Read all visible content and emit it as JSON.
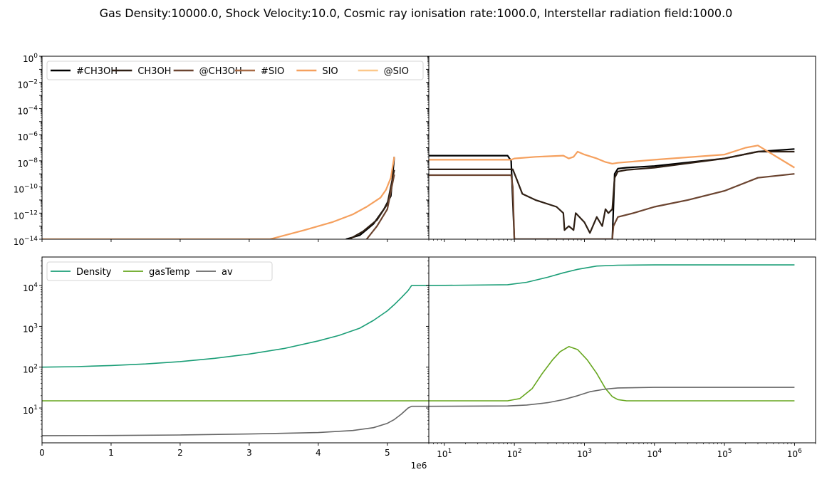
{
  "figure": {
    "suptitle": "Gas Density:10000.0, Shock Velocity:10.0, Cosmic ray ionisation rate:1000.0, Interstellar radiation field:1000.0",
    "offset_label": "1e6"
  },
  "chart_data": [
    {
      "type": "line",
      "panel": "top-left",
      "x_scale": "linear",
      "y_scale": "log",
      "xlim": [
        0,
        5.6
      ],
      "x_unit_multiplier": 1000000,
      "ylim": [
        1e-14,
        1
      ],
      "y_ticks": [
        "10^0",
        "10^-2",
        "10^-4",
        "10^-6",
        "10^-8",
        "10^-10",
        "10^-12",
        "10^-14"
      ],
      "legend": "top-left, 6 columns",
      "series": [
        {
          "name": "#CH3OH",
          "color": "#000000",
          "x": [
            4.4,
            4.6,
            4.8,
            4.95,
            5.05,
            5.1
          ],
          "y": [
            1e-14,
            2e-14,
            1.5e-13,
            2e-12,
            2e-11,
            2e-08
          ]
        },
        {
          "name": "CH3OH",
          "color": "#2e1f14",
          "x": [
            4.45,
            4.65,
            4.85,
            5.0,
            5.1
          ],
          "y": [
            1e-14,
            4e-14,
            3e-13,
            5e-12,
            2e-09
          ]
        },
        {
          "name": "@CH3OH",
          "color": "#6b4430",
          "x": [
            4.7,
            4.85,
            5.0,
            5.1
          ],
          "y": [
            1e-14,
            1e-13,
            2e-12,
            9e-10
          ]
        },
        {
          "name": "#SIO",
          "color": "#a86a45",
          "x": [],
          "y": []
        },
        {
          "name": "SIO",
          "color": "#f5a05e",
          "x": [
            0,
            3.3,
            3.8,
            4.2,
            4.5,
            4.7,
            4.9,
            4.98,
            5.05,
            5.1
          ],
          "y": [
            1e-14,
            1e-14,
            5e-14,
            2e-13,
            8e-13,
            3e-12,
            1.5e-11,
            6e-11,
            5e-10,
            2e-08
          ]
        },
        {
          "name": "@SIO",
          "color": "#fcc88a",
          "x": [],
          "y": []
        }
      ]
    },
    {
      "type": "line",
      "panel": "top-right",
      "x_scale": "log",
      "y_scale": "log",
      "xlim": [
        6,
        2000000
      ],
      "x_ticks": [
        "10^1",
        "10^2",
        "10^3",
        "10^4",
        "10^5",
        "10^6"
      ],
      "ylim": [
        1e-14,
        1
      ],
      "series": [
        {
          "name": "#CH3OH",
          "color": "#000000",
          "x": [
            6,
            80,
            90,
            100,
            2500,
            2700,
            3000,
            4000,
            10000,
            100000,
            300000,
            1000000
          ],
          "y": [
            2.5e-08,
            2.5e-08,
            1e-08,
            1e-14,
            1e-14,
            1e-09,
            2.5e-09,
            3e-09,
            4e-09,
            1.5e-08,
            5e-08,
            8e-08
          ]
        },
        {
          "name": "CH3OH",
          "color": "#2e1f14",
          "x": [
            6,
            95,
            110,
            130,
            200,
            400,
            500,
            520,
            600,
            700,
            750,
            1000,
            1200,
            1500,
            1800,
            2000,
            2200,
            2500,
            2700,
            3000,
            4000,
            10000,
            100000,
            300000,
            1000000
          ],
          "y": [
            2.2e-09,
            2.2e-09,
            3e-10,
            3e-11,
            1e-11,
            3e-12,
            1e-12,
            5e-14,
            1e-13,
            5e-14,
            1e-12,
            2e-13,
            3e-14,
            5e-13,
            1e-13,
            2e-12,
            1e-12,
            2e-12,
            5e-10,
            1.5e-09,
            2e-09,
            3e-09,
            1.5e-08,
            5e-08,
            5e-08
          ]
        },
        {
          "name": "@CH3OH",
          "color": "#6b4430",
          "x": [
            6,
            90,
            95,
            100,
            2500,
            2600,
            3000,
            5000,
            10000,
            30000,
            100000,
            300000,
            1000000
          ],
          "y": [
            8e-10,
            8e-10,
            1e-10,
            1e-14,
            1e-14,
            1e-13,
            5e-13,
            1e-12,
            3e-12,
            1e-11,
            5e-11,
            5e-10,
            1e-09
          ]
        },
        {
          "name": "#SIO",
          "color": "#a86a45",
          "x": [],
          "y": []
        },
        {
          "name": "SIO",
          "color": "#f5a05e",
          "x": [
            6,
            90,
            100,
            200,
            500,
            600,
            700,
            800,
            1000,
            1500,
            2000,
            2500,
            3000,
            10000,
            100000,
            200000,
            300000,
            1000000
          ],
          "y": [
            1.2e-08,
            1.2e-08,
            1.5e-08,
            2e-08,
            2.5e-08,
            1.5e-08,
            2e-08,
            5e-08,
            3e-08,
            1.5e-08,
            8e-09,
            6e-09,
            7e-09,
            1.2e-08,
            3e-08,
            1e-07,
            1.5e-07,
            3e-09
          ]
        },
        {
          "name": "@SIO",
          "color": "#fcc88a",
          "x": [],
          "y": []
        }
      ]
    },
    {
      "type": "line",
      "panel": "bottom-left",
      "x_scale": "linear",
      "y_scale": "log",
      "xlim": [
        0,
        5.6
      ],
      "x_ticks": [
        "0",
        "1",
        "2",
        "3",
        "4",
        "5"
      ],
      "ylim": [
        1.4,
        50000
      ],
      "y_ticks": [
        "10^1",
        "10^2",
        "10^3",
        "10^4"
      ],
      "legend": "top-left, 3 columns",
      "series": [
        {
          "name": "Density",
          "color": "#1b9e77",
          "x": [
            0,
            0.5,
            1,
            1.5,
            2,
            2.5,
            3,
            3.5,
            4,
            4.3,
            4.6,
            4.8,
            5.0,
            5.1,
            5.2,
            5.3,
            5.35,
            5.4,
            5.5,
            5.6
          ],
          "y": [
            100,
            103,
            110,
            120,
            137,
            165,
            210,
            285,
            440,
            600,
            900,
            1400,
            2400,
            3400,
            5000,
            7500,
            10000,
            10000,
            10000,
            10000
          ]
        },
        {
          "name": "gasTemp",
          "color": "#66a61e",
          "x": [
            0,
            5.6
          ],
          "y": [
            15,
            15
          ]
        },
        {
          "name": "av",
          "color": "#666666",
          "x": [
            0,
            1,
            2,
            3,
            4,
            4.5,
            4.8,
            5.0,
            5.1,
            5.2,
            5.3,
            5.35,
            5.4,
            5.6
          ],
          "y": [
            2.1,
            2.12,
            2.18,
            2.3,
            2.5,
            2.8,
            3.3,
            4.2,
            5.2,
            7,
            10,
            11,
            11,
            11
          ]
        }
      ]
    },
    {
      "type": "line",
      "panel": "bottom-right",
      "x_scale": "log",
      "y_scale": "log",
      "xlim": [
        6,
        2000000
      ],
      "x_ticks": [
        "10^1",
        "10^2",
        "10^3",
        "10^4",
        "10^5",
        "10^6"
      ],
      "ylim": [
        1.4,
        50000
      ],
      "series": [
        {
          "name": "Density",
          "color": "#1b9e77",
          "x": [
            6,
            80,
            150,
            300,
            500,
            800,
            1500,
            3000,
            10000,
            100000,
            1000000
          ],
          "y": [
            10000,
            10500,
            12000,
            16000,
            20500,
            25000,
            30000,
            31500,
            32000,
            32000,
            32000
          ]
        },
        {
          "name": "gasTemp",
          "color": "#66a61e",
          "x": [
            6,
            80,
            120,
            180,
            250,
            350,
            450,
            600,
            800,
            1100,
            1500,
            2000,
            2500,
            3000,
            4000,
            10000,
            1000000
          ],
          "y": [
            15,
            15,
            17,
            30,
            70,
            150,
            240,
            320,
            270,
            150,
            70,
            30,
            19,
            16,
            15,
            15,
            15
          ]
        },
        {
          "name": "av",
          "color": "#666666",
          "x": [
            6,
            80,
            150,
            300,
            500,
            800,
            1200,
            2000,
            3000,
            10000,
            1000000
          ],
          "y": [
            11,
            11.2,
            11.8,
            13.5,
            16,
            20,
            25,
            29,
            31,
            32,
            32
          ]
        }
      ]
    }
  ]
}
